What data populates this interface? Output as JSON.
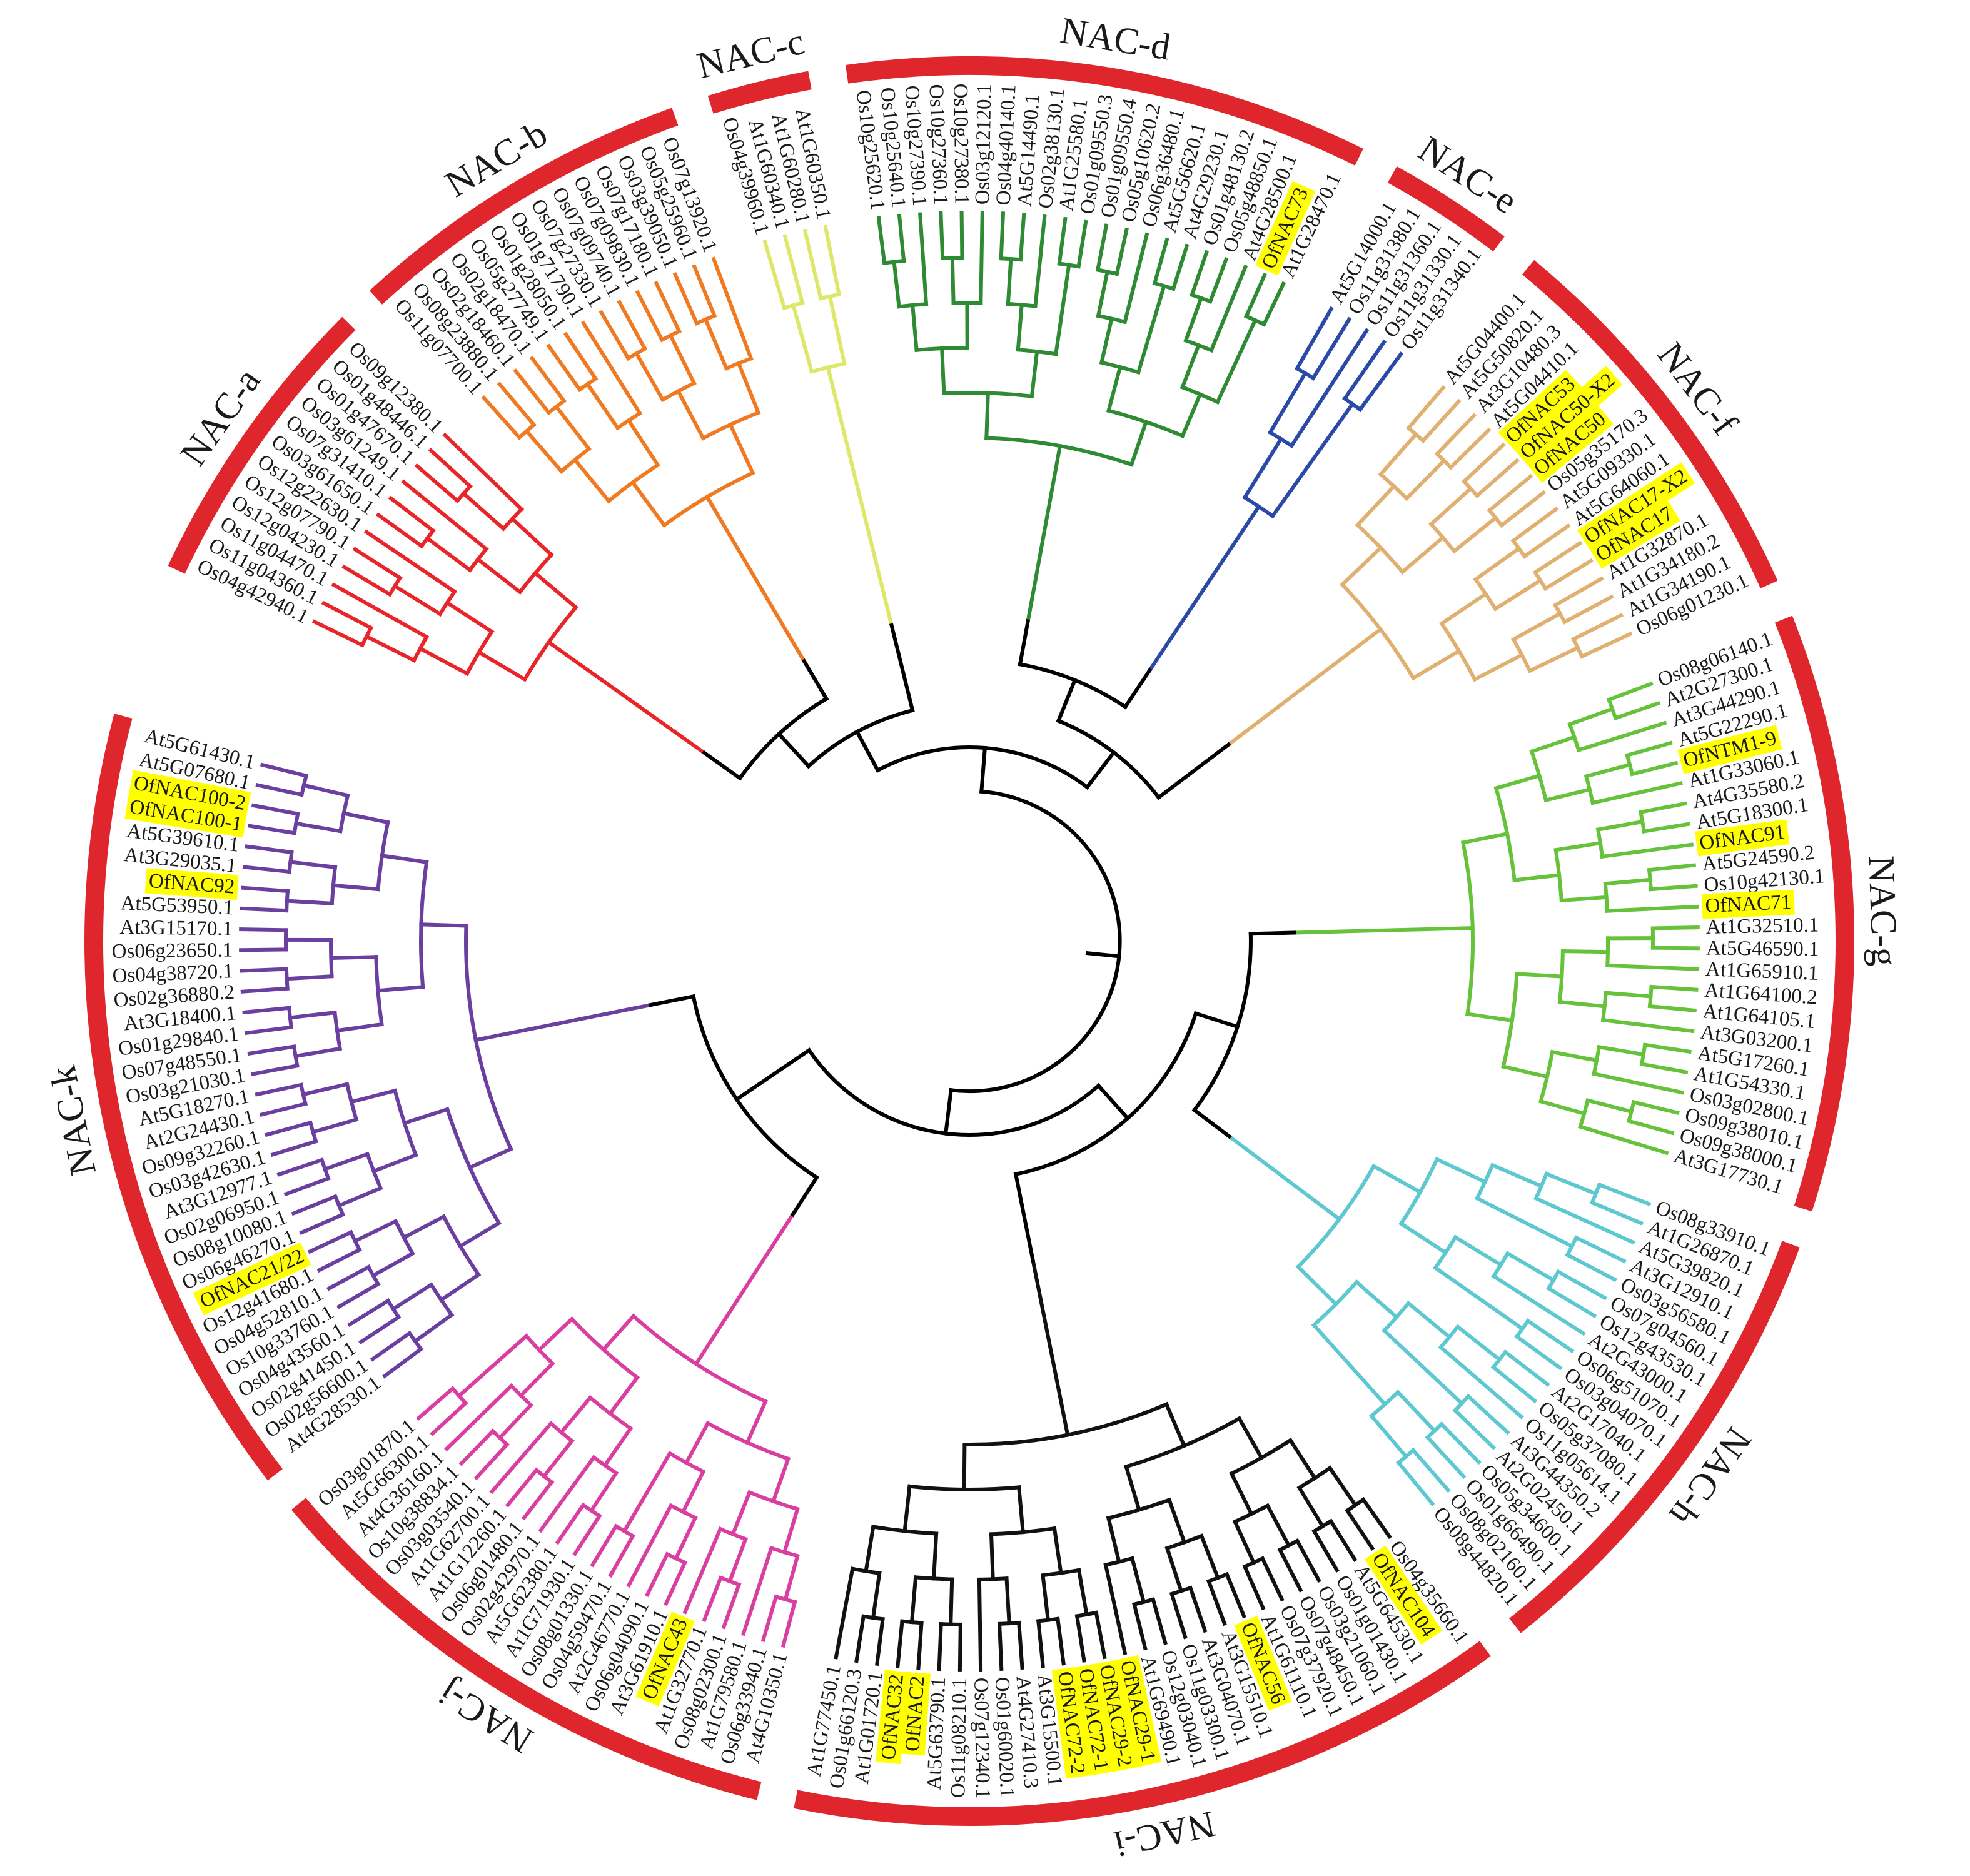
{
  "ring_color": "#e0262d",
  "highlight_color": "#ffff00",
  "backbone_color": "#000000",
  "clades": [
    {
      "name": "NAC-a",
      "color": "#e8262a",
      "leaves": [
        "Os04g42940.1",
        "Os11g04360.1",
        "Os11g04470.1",
        "Os12g04230.1",
        "Os12g07790.1",
        "Os12g22630.1",
        "Os03g61650.1",
        "Os07g31410.1",
        "Os03g61249.1",
        "Os01g47670.1",
        "Os01g48446.1",
        "Os09g12380.1"
      ]
    },
    {
      "name": "NAC-b",
      "color": "#f07a22",
      "leaves": [
        "Os11g07700.1",
        "Os08g23880.1",
        "Os02g18460.1",
        "Os02g18470.1",
        "Os05g27749.1",
        "Os01g28050.1",
        "Os01g71790.1",
        "Os07g27330.1",
        "Os07g09740.1",
        "Os07g09830.1",
        "Os07g17180.1",
        "Os03g39050.1",
        "Os05g25960.1",
        "Os07g13920.1"
      ]
    },
    {
      "name": "NAC-c",
      "color": "#dde86a",
      "leaves": [
        "Os04g39960.1",
        "At1G60340.1",
        "At1G60280.1",
        "At1G60350.1"
      ]
    },
    {
      "name": "NAC-d",
      "color": "#2e8b33",
      "leaves": [
        "Os10g25620.1",
        "Os10g25640.1",
        "Os10g27390.1",
        "Os10g27360.1",
        "Os10g27380.1",
        "Os03g12120.1",
        "Os04g40140.1",
        "At5G14490.1",
        "Os02g38130.1",
        "At1G25580.1",
        "Os01g09550.3",
        "Os01g09550.4",
        "Os05g10620.2",
        "Os06g36480.1",
        "At5G56620.1",
        "At4G29230.1",
        "Os01g48130.2",
        "Os05g48850.1",
        "At4G28500.1",
        "OfNAC73",
        "At1G28470.1"
      ]
    },
    {
      "name": "NAC-e",
      "color": "#2b4aa8",
      "leaves": [
        "At5G14000.1",
        "Os11g31380.1",
        "Os11g31360.1",
        "Os11g31330.1",
        "Os11g31340.1"
      ]
    },
    {
      "name": "NAC-f",
      "color": "#e0b070",
      "leaves": [
        "At5G04400.1",
        "At5G50820.1",
        "At3G10480.3",
        "At5G04410.1",
        "OfNAC53",
        "OfNAC50-X2",
        "OfNAC50",
        "Os05g35170.3",
        "At5G09330.1",
        "At5G64060.1",
        "OfNAC17-X2",
        "OfNAC17",
        "At1G32870.1",
        "At1G34180.2",
        "At1G34190.1",
        "Os06g01230.1"
      ]
    },
    {
      "name": "NAC-g",
      "color": "#66c23a",
      "leaves": [
        "Os08g06140.1",
        "At2G27300.1",
        "At3G44290.1",
        "At5G22290.1",
        "OfNTM1-9",
        "At1G33060.1",
        "At4G35580.2",
        "At5G18300.1",
        "OfNAC91",
        "At5G24590.2",
        "Os10g42130.1",
        "OfNAC71",
        "At1G32510.1",
        "At5G46590.1",
        "At1G65910.1",
        "At1G64100.2",
        "At1G64105.1",
        "At3G03200.1",
        "At5G17260.1",
        "At1G54330.1",
        "Os03g02800.1",
        "Os09g38010.1",
        "Os09g38000.1",
        "At3G17730.1"
      ]
    },
    {
      "name": "NAC-h",
      "color": "#5ec8d0",
      "leaves": [
        "Os08g33910.1",
        "At1G26870.1",
        "At5G39820.1",
        "At3G12910.1",
        "Os03g56580.1",
        "Os07g04560.1",
        "Os12g43530.1",
        "At2G43000.1",
        "Os06g51070.1",
        "Os03g04070.1",
        "At2G17040.1",
        "Os05g37080.1",
        "Os11g05614.1",
        "At3G44350.2",
        "At2G02450.1",
        "Os05g34600.1",
        "Os01g66490.1",
        "Os08g02160.1",
        "Os08g44820.1"
      ]
    },
    {
      "name": "NAC-i",
      "color": "#111111",
      "leaves": [
        "Os04g35660.1",
        "OfNAC104",
        "At5G64530.1",
        "Os01g01430.1",
        "Os03g21060.1",
        "Os07g48450.1",
        "Os07g37920.1",
        "At1G61110.1",
        "OfNAC56",
        "At3G15510.1",
        "At3G04070.1",
        "Os11g03300.1",
        "Os12g03040.1",
        "At1G69490.1",
        "OfNAC29-1",
        "OfNAC29-2",
        "OfNAC72-1",
        "OfNAC72-2",
        "At3G15500.1",
        "At4G27410.3",
        "Os01g60020.1",
        "Os07g12340.1",
        "Os11g08210.1",
        "At5G63790.1",
        "OfNAC2",
        "OfNAC32",
        "At1G01720.1",
        "Os01g66120.3",
        "At1G77450.1"
      ]
    },
    {
      "name": "NAC-j",
      "color": "#d93fa0",
      "leaves": [
        "At4G10350.1",
        "Os06g33940.1",
        "At1G79580.1",
        "Os08g02300.1",
        "At1G32770.1",
        "OfNAC43",
        "At3G61910.1",
        "Os06g04090.1",
        "At2G46770.1",
        "Os04g59470.1",
        "Os08g01330.1",
        "At1G71930.1",
        "At5G62380.1",
        "Os02g42970.1",
        "Os06g01480.1",
        "At1G12260.1",
        "At1G62700.1",
        "Os03g03540.1",
        "Os10g38834.1",
        "At4G36160.1",
        "At5G66300.1",
        "Os03g01870.1"
      ]
    },
    {
      "name": "NAC-k",
      "color": "#6b3fa0",
      "leaves": [
        "At4G28530.1",
        "Os02g56600.1",
        "Os02g41450.1",
        "Os04g43560.1",
        "Os10g33760.1",
        "Os04g52810.1",
        "Os12g41680.1",
        "OfNAC21/22",
        "Os06g46270.1",
        "Os08g10080.1",
        "Os02g06950.1",
        "At3G12977.1",
        "Os03g42630.1",
        "Os09g32260.1",
        "At2G24430.1",
        "At5G18270.1",
        "Os03g21030.1",
        "Os07g48550.1",
        "Os01g29840.1",
        "At3G18400.1",
        "Os02g36880.2",
        "Os04g38720.1",
        "Os06g23650.1",
        "At3G15170.1",
        "At5G53950.1",
        "OfNAC92",
        "At3G29035.1",
        "At5G39610.1",
        "OfNAC100-1",
        "OfNAC100-2",
        "At5G07680.1",
        "At5G61430.1"
      ]
    }
  ]
}
